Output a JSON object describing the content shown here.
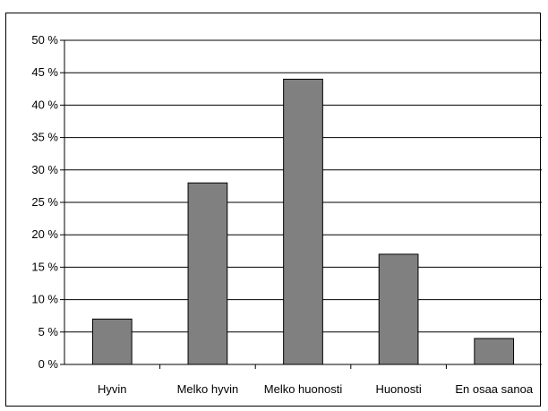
{
  "chart_data": {
    "type": "bar",
    "categories": [
      "Hyvin",
      "Melko hyvin",
      "Melko huonosti",
      "Huonosti",
      "En osaa sanoa"
    ],
    "values": [
      7,
      28,
      44,
      17,
      4
    ],
    "y_ticks": [
      "0 %",
      "5 %",
      "10 %",
      "15 %",
      "20 %",
      "25 %",
      "30 %",
      "35 %",
      "40 %",
      "45 %",
      "50 %"
    ],
    "ylim": [
      0,
      50
    ],
    "y_step": 5,
    "grid": true,
    "legend": "none",
    "colors": {
      "bar_fill": "#808080",
      "bar_stroke": "#000000",
      "grid": "#000000",
      "axis": "#000000"
    }
  }
}
